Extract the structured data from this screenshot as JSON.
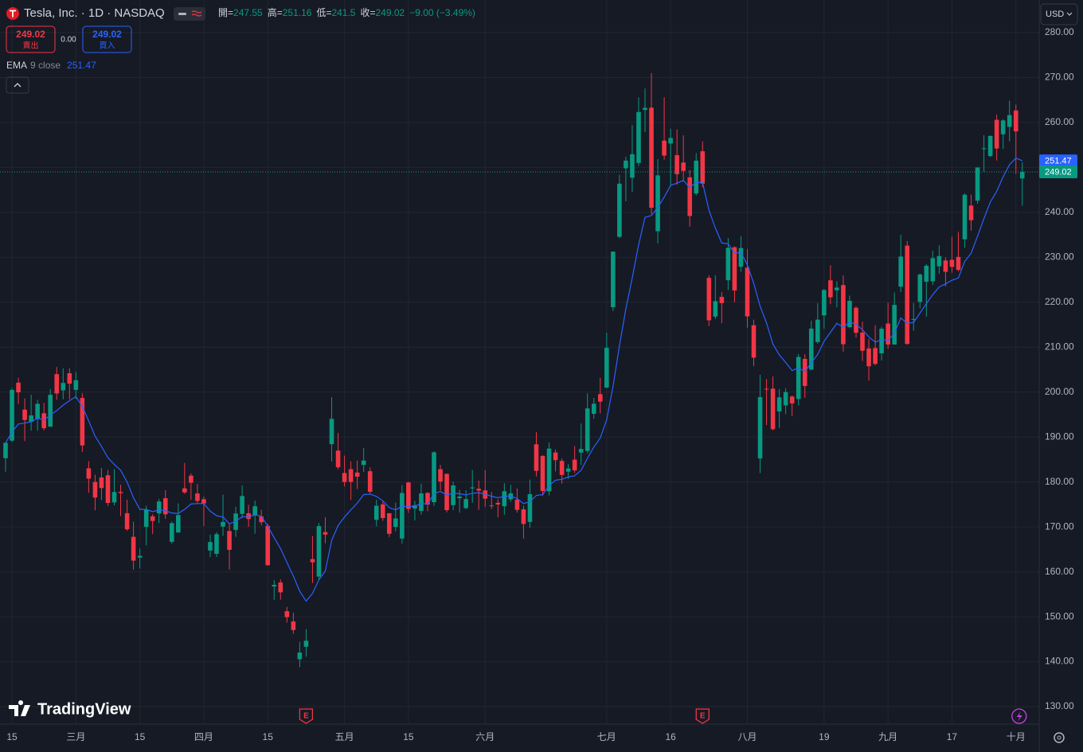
{
  "chart_data": {
    "type": "candlestick",
    "title": "Tesla, Inc. · 1D · NASDAQ",
    "ohlc_labels": [
      "開=",
      "高=",
      "低=",
      "收="
    ],
    "change": "−9.00 (−3.49%)",
    "sell_label": "賣出",
    "buy_label": "買入",
    "spread": "0.00",
    "currency": "USD",
    "brand": "TradingView",
    "up_color": "#089981",
    "down_color": "#f23645",
    "categories": [
      null,
      "15",
      null,
      null,
      null,
      null,
      null,
      null,
      null,
      null,
      null,
      "三月",
      null,
      null,
      null,
      null,
      null,
      null,
      null,
      null,
      null,
      "15",
      null,
      null,
      null,
      null,
      null,
      null,
      null,
      null,
      null,
      "四月",
      null,
      null,
      null,
      null,
      null,
      null,
      null,
      null,
      null,
      "15",
      null,
      null,
      null,
      null,
      null,
      null,
      null,
      null,
      null,
      null,
      null,
      "五月",
      null,
      null,
      null,
      null,
      null,
      null,
      null,
      null,
      null,
      "15",
      null,
      null,
      null,
      null,
      null,
      null,
      null,
      null,
      null,
      null,
      null,
      "六月",
      null,
      null,
      null,
      null,
      null,
      null,
      null,
      null,
      null,
      null,
      null,
      null,
      null,
      null,
      null,
      null,
      null,
      null,
      "七月",
      null,
      null,
      null,
      null,
      null,
      null,
      null,
      null,
      null,
      "16",
      null,
      null,
      null,
      null,
      null,
      null,
      null,
      null,
      null,
      null,
      null,
      "八月",
      null,
      null,
      null,
      null,
      null,
      null,
      null,
      null,
      null,
      null,
      null,
      "19",
      null,
      null,
      null,
      null,
      null,
      null,
      null,
      null,
      null,
      "九月",
      null,
      null,
      null,
      null,
      null,
      null,
      null,
      null,
      null,
      "17",
      null,
      null,
      null,
      null,
      null,
      null,
      null,
      null,
      null,
      "十月",
      null
    ],
    "open": [
      185.3,
      189.2,
      202.1,
      196.1,
      193.4,
      194,
      195.3,
      192.3,
      204,
      200.4,
      204.2,
      200.5,
      198.7,
      183.05,
      179.99,
      181,
      181.5,
      175.45,
      177.8,
      173.05,
      167.8,
      163.16,
      170.02,
      172.36,
      173,
      176.39,
      166.69,
      168.76,
      178.58,
      181.41,
      177.45,
      176.17,
      164.75,
      164.02,
      170.07,
      169.08,
      169.34,
      172.91,
      173.04,
      172.55,
      172.34,
      170.24,
      156.74,
      157.64,
      151.25,
      148.97,
      140.56,
      143.33,
      162.84,
      158.96,
      168.85,
      188.42,
      186.98,
      182,
      182.86,
      182.1,
      183.8,
      182.4,
      171.59,
      175.01,
      173.05,
      170,
      167.41,
      179.9,
      174.1,
      173.55,
      177.56,
      175.51,
      182.85,
      181.8,
      174.84,
      176.4,
      174.19,
      178.58,
      178.5,
      178.13,
      174.78,
      175.35,
      174.6,
      176.13,
      176.06,
      173.92,
      171.12,
      188.39,
      185.8,
      177.92,
      186.56,
      184.68,
      182.3,
      184.97,
      186.54,
      186.92,
      195.17,
      199.55,
      201.02,
      218.89,
      234.56,
      249.81,
      247.71,
      251,
      262.8,
      263.3,
      235.8,
      255.97,
      255.31,
      252.73,
      251.09,
      247.79,
      244.21,
      253.6,
      225.42,
      216.8,
      221.19,
      224.9,
      232.25,
      227.9,
      227.69,
      214.88,
      185.22,
      200.75,
      200.77,
      195.7,
      197.05,
      199.02,
      198.47,
      207.39,
      205.02,
      211.15,
      217.07,
      224.88,
      222.67,
      223.82,
      214.46,
      218.75,
      213.25,
      209.72,
      209.8,
      208.63,
      215.26,
      210.59,
      223.49,
      232.6,
      216.2,
      220.07,
      224.55,
      224.66,
      228,
      229.3,
      229.45,
      230.09,
      234,
      241.52,
      242.61,
      254.08,
      252.54,
      260.6,
      257.38,
      259.04,
      262.67,
      247.55
    ],
    "high": [
      188.9,
      200.9,
      203.2,
      198.6,
      199.4,
      198.3,
      197.6,
      200.7,
      205.6,
      205.3,
      205.3,
      204.5,
      199.75,
      184.6,
      181.6,
      183.1,
      182.7,
      182.87,
      179.4,
      176.05,
      171.17,
      165.18,
      174.72,
      172.82,
      176.25,
      178.18,
      171.2,
      175.24,
      184.25,
      181.91,
      179.57,
      176.75,
      168.29,
      168.82,
      177.19,
      170.86,
      174.5,
      179.22,
      174.93,
      175.88,
      173.81,
      170.69,
      158.19,
      158.33,
      152.2,
      150.94,
      144.44,
      147.26,
      167.97,
      170.88,
      172.12,
      198.87,
      190.95,
      185.86,
      184.6,
      184.78,
      187.56,
      183.26,
      176.06,
      175.62,
      173.06,
      175.4,
      179.3,
      180,
      175.79,
      179.63,
      177.75,
      186.88,
      183.8,
      181.9,
      180.08,
      178.25,
      178.15,
      182.67,
      180.32,
      182.64,
      177.76,
      176.15,
      179.73,
      179.35,
      178.57,
      174.75,
      180.55,
      191.08,
      186,
      188.81,
      187.2,
      185.21,
      183.95,
      187.97,
      193,
      199.7,
      198.72,
      203.2,
      213.23,
      231.3,
      248.35,
      252.37,
      259.44,
      265.61,
      267.59,
      271,
      251.84,
      265.6,
      258.62,
      258.47,
      257.14,
      249.44,
      253.21,
      255.76,
      225.99,
      226,
      222.28,
      234.27,
      232.41,
      234.68,
      231.87,
      216.13,
      203.88,
      202.9,
      203.49,
      200.7,
      200.88,
      199.26,
      208.49,
      208.44,
      215.88,
      219.8,
      222.98,
      228.22,
      224.66,
      225.99,
      221.48,
      219.09,
      215.66,
      211.84,
      214.89,
      214.57,
      219.9,
      222.22,
      235,
      233.6,
      219.87,
      226.4,
      228.47,
      231.45,
      232.67,
      229.96,
      234.57,
      235.68,
      244.24,
      243.99,
      250,
      257.19,
      257.05,
      261.75,
      260.7,
      264.86,
      263.98,
      251.16
    ],
    "low": [
      182.3,
      188.9,
      197.4,
      189.1,
      191.4,
      191.4,
      191.5,
      192.3,
      198.3,
      198.4,
      198.4,
      198.5,
      186.7,
      177.6,
      173.7,
      176,
      174.7,
      174.8,
      172.4,
      169.15,
      160.51,
      160.76,
      165.9,
      168.42,
      170.82,
      171.8,
      166.3,
      168.73,
      177.38,
      176,
      175.3,
      170.21,
      163.28,
      163.28,
      168.01,
      160.51,
      167.79,
      171.92,
      170.01,
      168.51,
      170.36,
      161.38,
      153.75,
      153.78,
      148.7,
      146.22,
      138.8,
      141.11,
      157.51,
      158.36,
      166.37,
      184.54,
      182.84,
      179.01,
      176.02,
      178.42,
      182.2,
      177.4,
      170.15,
      171.37,
      167.75,
      169,
      166.3,
      173.11,
      171.43,
      172.75,
      173.52,
      174.71,
      178.12,
      173.26,
      173.73,
      173.16,
      173.93,
      175.38,
      173.82,
      174.49,
      174,
      172.13,
      172.73,
      175.58,
      173.17,
      167.41,
      169.8,
      181.23,
      176.92,
      177,
      182.37,
      179.66,
      180.69,
      182.01,
      183.8,
      186.4,
      194.05,
      195.26,
      200.85,
      218.06,
      234.25,
      242.46,
      244.57,
      250.3,
      257.86,
      239.65,
      233.09,
      251.73,
      245.8,
      246.18,
      247.2,
      236.83,
      243.75,
      245.63,
      214.71,
      216.23,
      215.33,
      222.7,
      220,
      226.79,
      214.33,
      205.78,
      182,
      192.67,
      191.48,
      192.04,
      195.11,
      194.67,
      197.06,
      198.75,
      204.82,
      210.8,
      214.09,
      219.56,
      218.86,
      209.01,
      214.21,
      212.11,
      206.94,
      202.59,
      205.97,
      207.03,
      209.64,
      210.57,
      222.25,
      210.51,
      213.67,
      218.64,
      216.8,
      223.83,
      226.32,
      223.53,
      226.55,
      226.88,
      232.13,
      235.92,
      241.92,
      249.05,
      252.28,
      251.53,
      254.12,
      255.77,
      248.53,
      241.5
    ],
    "close": [
      188.7,
      200.5,
      199.95,
      193.8,
      194.8,
      197.4,
      191.97,
      199.4,
      199.7,
      202.04,
      201.88,
      202.64,
      188.14,
      180.74,
      176.54,
      178.65,
      175.34,
      177.77,
      177.54,
      169.48,
      162.5,
      163.57,
      173.8,
      171.32,
      175.66,
      172.82,
      170.83,
      172.63,
      177.67,
      179.83,
      175.79,
      175.22,
      166.63,
      168.38,
      171.11,
      164.9,
      172.98,
      176.88,
      171.76,
      174.6,
      171.05,
      161.48,
      157.11,
      155.45,
      149.93,
      147.05,
      142.05,
      144.68,
      162.13,
      170.18,
      168.29,
      194.05,
      183.28,
      179.99,
      180.01,
      181.19,
      184.76,
      177.81,
      174.72,
      171.97,
      168.47,
      171.89,
      177.55,
      173.99,
      174.84,
      177.46,
      174.95,
      186.6,
      180.11,
      173.74,
      179.24,
      176.75,
      176.19,
      178.79,
      178.08,
      176.29,
      174.77,
      175,
      177.94,
      177.48,
      173.79,
      170.66,
      177.29,
      182.47,
      178.01,
      187.44,
      184.86,
      181.57,
      183.01,
      182.58,
      187.35,
      196.37,
      197.42,
      197.88,
      209.86,
      231.26,
      246.39,
      251.52,
      252.94,
      262.33,
      263.26,
      241.03,
      248.23,
      252.64,
      256.56,
      248.5,
      249.23,
      239.2,
      251.51,
      246.38,
      215.99,
      220.25,
      219.8,
      232.1,
      222.62,
      232.07,
      216.86,
      207.67,
      198.88,
      200.64,
      191.76,
      198.84,
      200,
      197.49,
      207.83,
      201.38,
      214.14,
      216.12,
      222.72,
      221.1,
      223.27,
      210.66,
      220.32,
      213.21,
      209.21,
      205.75,
      206.28,
      214.11,
      210.6,
      219.41,
      230.17,
      210.73,
      216.27,
      226.17,
      228.13,
      229.81,
      230.29,
      226.78,
      227.87,
      227.2,
      243.92,
      238.25,
      250,
      254.27,
      257.02,
      254.22,
      260.46,
      261.63,
      258.02,
      249.02
    ],
    "indicator": {
      "name": "EMA",
      "params": "9 close",
      "color": "#2962ff",
      "values": [
        188.7,
        191.1,
        192.9,
        193.1,
        193.4,
        194.2,
        193.8,
        194.9,
        195.9,
        197.1,
        198.1,
        199,
        196.8,
        193.6,
        190.2,
        187.9,
        185.4,
        183.9,
        182.6,
        180,
        176.5,
        173.9,
        173.9,
        173.4,
        173.8,
        173.6,
        173.1,
        173,
        173.9,
        175.1,
        175.2,
        175.2,
        173.5,
        172.5,
        172.2,
        170.7,
        171.2,
        172.3,
        172.2,
        172.7,
        172.4,
        170.2,
        167.6,
        165.2,
        162.1,
        159.1,
        155.7,
        153.5,
        155.2,
        158.2,
        160.2,
        167,
        170.3,
        172.2,
        173.8,
        175.3,
        177.2,
        177.3,
        176.8,
        175.8,
        174.3,
        173.8,
        174.6,
        174.5,
        174.6,
        175.2,
        175.1,
        177.4,
        177.9,
        177.1,
        177.5,
        177.4,
        177.1,
        177.5,
        177.6,
        177.3,
        176.8,
        176.5,
        176.8,
        176.9,
        176.3,
        175.2,
        175.6,
        177,
        177.2,
        179.2,
        180.4,
        180.6,
        181.1,
        181.4,
        182.6,
        185.3,
        187.8,
        189.8,
        193.8,
        201.3,
        210.3,
        218.5,
        225.4,
        232.8,
        238.9,
        239.3,
        241.1,
        243.4,
        246,
        246.5,
        247.1,
        245.5,
        246.7,
        246.6,
        240.5,
        236.5,
        233.2,
        233,
        230.9,
        231.1,
        228.3,
        224.2,
        219.1,
        215.4,
        210.7,
        208.3,
        206.6,
        204.8,
        205.4,
        204.6,
        206.5,
        208.4,
        211.3,
        213.3,
        215.3,
        214.4,
        215.6,
        215.1,
        213.9,
        212.3,
        211.1,
        211.7,
        211.5,
        213.1,
        216.5,
        215.3,
        215.5,
        217.6,
        219.7,
        221.7,
        223.4,
        224.1,
        224.9,
        225.4,
        229.1,
        230.9,
        234.7,
        238.6,
        242.3,
        244.7,
        247.9,
        250.6,
        252.1,
        251.47
      ]
    },
    "earnings": {
      "label": "E",
      "at": [
        47,
        109
      ]
    },
    "ylim": [
      126.11,
      287.26
    ],
    "yticks": [
      {
        "value": 130,
        "label": "130.00"
      },
      {
        "value": 140,
        "label": "140.00"
      },
      {
        "value": 150,
        "label": "150.00"
      },
      {
        "value": 160,
        "label": "160.00"
      },
      {
        "value": 170,
        "label": "170.00"
      },
      {
        "value": 180,
        "label": "180.00"
      },
      {
        "value": 190,
        "label": "190.00"
      },
      {
        "value": 200,
        "label": "200.00"
      },
      {
        "value": 210,
        "label": "210.00"
      },
      {
        "value": 220,
        "label": "220.00"
      },
      {
        "value": 230,
        "label": "230.00"
      },
      {
        "value": 240,
        "label": "240.00"
      },
      {
        "value": 250,
        "label": "250.00"
      },
      {
        "value": 260,
        "label": "260.00"
      },
      {
        "value": 270,
        "label": "270.00"
      },
      {
        "value": 280,
        "label": "280.00"
      }
    ],
    "grid": true
  }
}
